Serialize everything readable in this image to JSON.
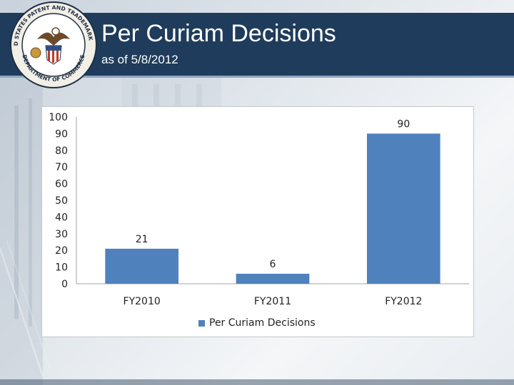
{
  "header": {
    "title": "Per Curiam Decisions",
    "subtitle": "as of 5/8/2012",
    "background_color": "#1f3c5c",
    "seal_text_top": "UNITED STATES PATENT AND TRADEMARK OFFICE",
    "seal_text_bottom": "DEPARTMENT OF COMMERCE"
  },
  "chart_data": {
    "type": "bar",
    "categories": [
      "FY2010",
      "FY2011",
      "FY2012"
    ],
    "series": [
      {
        "name": "Per Curiam Decisions",
        "values": [
          21,
          6,
          90
        ],
        "color": "#4f81bd"
      }
    ],
    "yticks": [
      "0",
      "10",
      "20",
      "30",
      "40",
      "50",
      "60",
      "70",
      "80",
      "90",
      "100"
    ],
    "data_labels": [
      "21",
      "6",
      "90"
    ],
    "ylim": [
      0,
      100
    ],
    "grid": false,
    "legend_position": "bottom"
  }
}
